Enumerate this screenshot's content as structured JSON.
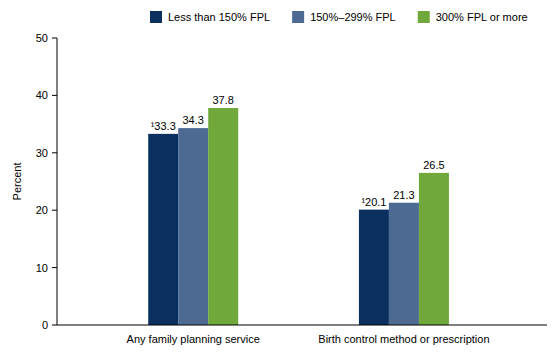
{
  "chart_data": {
    "type": "bar",
    "categories": [
      "Any family planning service",
      "Birth control method or prescription"
    ],
    "series": [
      {
        "name": "Less than 150% FPL",
        "color": "#0b2f5e",
        "values": [
          33.3,
          20.1
        ],
        "value_labels": [
          "¹33.3",
          "¹20.1"
        ]
      },
      {
        "name": "150%–299% FPL",
        "color": "#4d6a93",
        "values": [
          34.3,
          21.3
        ]
      },
      {
        "name": "300% FPL or more",
        "color": "#70a83c",
        "values": [
          37.8,
          26.5
        ]
      }
    ],
    "y_label": "Percent",
    "ylim": [
      0,
      50
    ],
    "yticks": [
      0,
      10,
      20,
      30,
      40,
      50
    ],
    "grid": false,
    "legend": "top",
    "data_labels": true
  }
}
